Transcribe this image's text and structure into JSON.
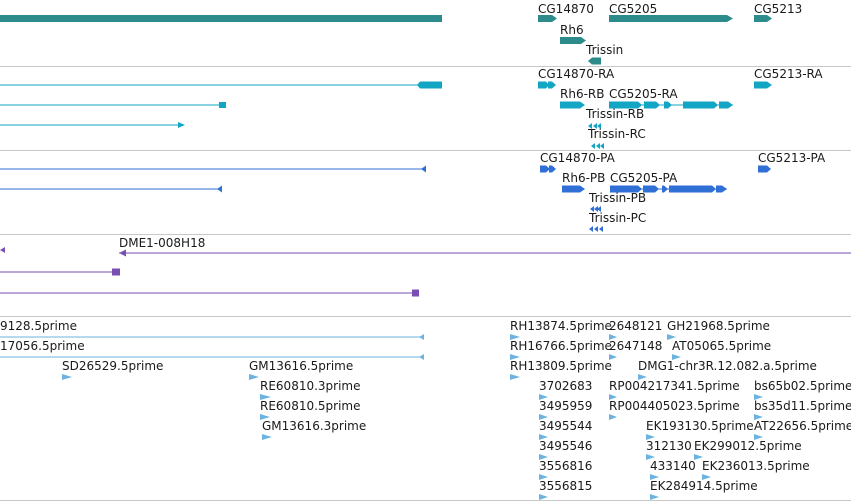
{
  "tracks": [
    {
      "id": "genes",
      "color": "#2e8b8b",
      "features": [
        {
          "label": "CG14870"
        },
        {
          "label": "CG5205"
        },
        {
          "label": "CG5213"
        },
        {
          "label": "Rh6"
        },
        {
          "label": "Trissin"
        }
      ]
    },
    {
      "id": "transcripts-ra",
      "color": "#12a6c4",
      "features": [
        {
          "label": "CG14870-RA"
        },
        {
          "label": "CG5213-RA"
        },
        {
          "label": "Rh6-RB"
        },
        {
          "label": "CG5205-RA"
        },
        {
          "label": "Trissin-RB"
        },
        {
          "label": "Trissin-RC"
        }
      ]
    },
    {
      "id": "proteins-pa",
      "color": "#2f6fd6",
      "features": [
        {
          "label": "CG14870-PA"
        },
        {
          "label": "CG5213-PA"
        },
        {
          "label": "Rh6-PB"
        },
        {
          "label": "CG5205-PA"
        },
        {
          "label": "Trissin-PB"
        },
        {
          "label": "Trissin-PC"
        }
      ]
    },
    {
      "id": "bacs",
      "color": "#7a4fb3",
      "features": [
        {
          "label": "DME1-008H18"
        }
      ]
    },
    {
      "id": "ests",
      "color": "#6db3e0",
      "features": [
        {
          "label": "9128.5prime"
        },
        {
          "label": "17056.5prime"
        },
        {
          "label": "SD26529.5prime"
        },
        {
          "label": "GM13616.5prime"
        },
        {
          "label": "RE60810.3prime"
        },
        {
          "label": "RE60810.5prime"
        },
        {
          "label": "GM13616.3prime"
        },
        {
          "label": "RH13874.5prime"
        },
        {
          "label": "2648121"
        },
        {
          "label": "GH21968.5prime"
        },
        {
          "label": "RH16766.5prime"
        },
        {
          "label": "2647148"
        },
        {
          "label": "AT05065.5prime"
        },
        {
          "label": "RH13809.5prime"
        },
        {
          "label": "DMG1-chr3R.12.082.a.5prime"
        },
        {
          "label": "3702683"
        },
        {
          "label": "RP004217341.5prime"
        },
        {
          "label": "bs65b02.5prime"
        },
        {
          "label": "3495959"
        },
        {
          "label": "RP004405023.5prime"
        },
        {
          "label": "bs35d11.5prime"
        },
        {
          "label": "3495544"
        },
        {
          "label": "EK193130.5prime"
        },
        {
          "label": "AT22656.5prime"
        },
        {
          "label": "3495546"
        },
        {
          "label": "312130"
        },
        {
          "label": "EK299012.5prime"
        },
        {
          "label": "3556816"
        },
        {
          "label": "433140"
        },
        {
          "label": "EK236013.5prime"
        },
        {
          "label": "3556815"
        },
        {
          "label": "EK284914.5prime"
        }
      ]
    }
  ]
}
